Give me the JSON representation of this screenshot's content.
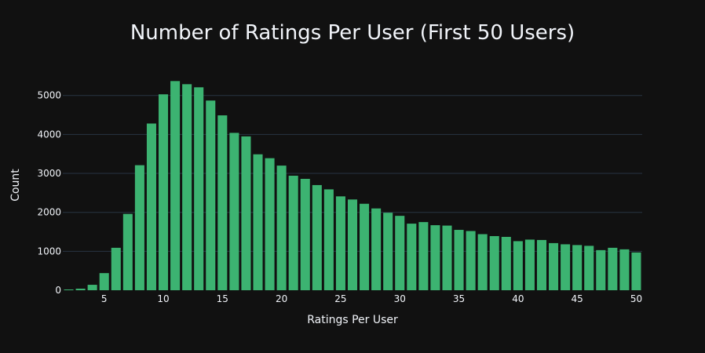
{
  "chart_data": {
    "type": "bar",
    "title": "Number of Ratings Per User (First 50 Users)",
    "xlabel": "Ratings Per User",
    "ylabel": "Count",
    "xlim": [
      1.5,
      50.5
    ],
    "ylim": [
      0,
      5800
    ],
    "x_ticks": [
      5,
      10,
      15,
      20,
      25,
      30,
      35,
      40,
      45,
      50
    ],
    "y_ticks": [
      0,
      1000,
      2000,
      3000,
      4000,
      5000
    ],
    "grid": true,
    "bar_color": "#3cb371",
    "background_color": "#111111",
    "x": [
      2,
      3,
      4,
      5,
      6,
      7,
      8,
      9,
      10,
      11,
      12,
      13,
      14,
      15,
      16,
      17,
      18,
      19,
      20,
      21,
      22,
      23,
      24,
      25,
      26,
      27,
      28,
      29,
      30,
      31,
      32,
      33,
      34,
      35,
      36,
      37,
      38,
      39,
      40,
      41,
      42,
      43,
      44,
      45,
      46,
      47,
      48,
      49,
      50
    ],
    "values": [
      20,
      40,
      140,
      440,
      1090,
      1960,
      3210,
      4280,
      5030,
      5370,
      5290,
      5210,
      4870,
      4490,
      4040,
      3950,
      3490,
      3390,
      3200,
      2940,
      2860,
      2700,
      2590,
      2410,
      2330,
      2220,
      2100,
      1990,
      1910,
      1710,
      1750,
      1670,
      1660,
      1550,
      1520,
      1440,
      1390,
      1370,
      1260,
      1300,
      1290,
      1210,
      1180,
      1160,
      1140,
      1030,
      1090,
      1050,
      970
    ]
  }
}
